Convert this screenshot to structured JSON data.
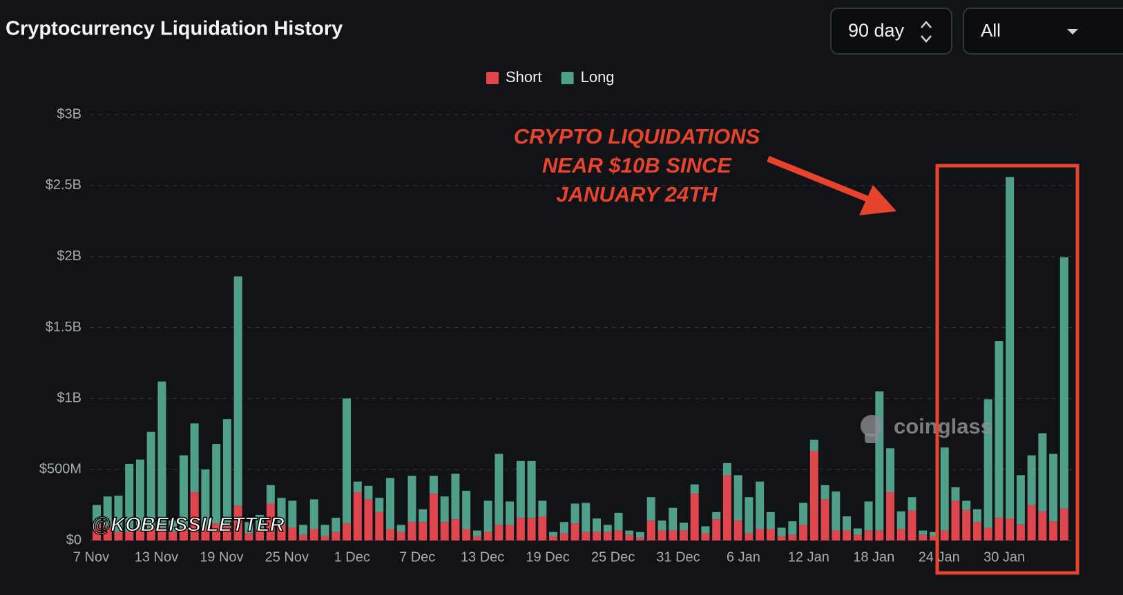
{
  "chart_data": {
    "type": "stacked_bar",
    "title": "Cryptocurrency Liquidation History",
    "controls": {
      "period": "90 day",
      "coin": "All"
    },
    "annotation": [
      "CRYPTO LIQUIDATIONS",
      "NEAR $10B SINCE",
      "JANUARY 24TH"
    ],
    "watermark": "coinglass",
    "credit": "@KOBEISSILETTER",
    "categories": [
      "7 Nov",
      null,
      null,
      null,
      null,
      null,
      "13 Nov",
      null,
      null,
      null,
      null,
      null,
      "19 Nov",
      null,
      null,
      null,
      null,
      null,
      "25 Nov",
      null,
      null,
      null,
      null,
      null,
      "1 Dec",
      null,
      null,
      null,
      null,
      null,
      "7 Dec",
      null,
      null,
      null,
      null,
      null,
      "13 Dec",
      null,
      null,
      null,
      null,
      null,
      "19 Dec",
      null,
      null,
      null,
      null,
      null,
      "25 Dec",
      null,
      null,
      null,
      null,
      null,
      "31 Dec",
      null,
      null,
      null,
      null,
      null,
      "6 Jan",
      null,
      null,
      null,
      null,
      null,
      "12 Jan",
      null,
      null,
      null,
      null,
      null,
      "18 Jan",
      null,
      null,
      null,
      null,
      null,
      "24 Jan",
      null,
      null,
      null,
      null,
      null,
      "30 Jan",
      null,
      null,
      null,
      null,
      null
    ],
    "series": [
      {
        "name": "Short",
        "color": "#e0464e",
        "values": [
          110000000,
          100000000,
          60000000,
          60000000,
          70000000,
          80000000,
          90000000,
          60000000,
          80000000,
          340000000,
          90000000,
          120000000,
          100000000,
          245000000,
          50000000,
          80000000,
          260000000,
          110000000,
          90000000,
          40000000,
          80000000,
          30000000,
          60000000,
          120000000,
          340000000,
          290000000,
          200000000,
          80000000,
          60000000,
          130000000,
          130000000,
          330000000,
          130000000,
          150000000,
          80000000,
          30000000,
          60000000,
          110000000,
          110000000,
          160000000,
          160000000,
          170000000,
          30000000,
          50000000,
          120000000,
          60000000,
          60000000,
          60000000,
          70000000,
          40000000,
          20000000,
          140000000,
          70000000,
          70000000,
          70000000,
          330000000,
          50000000,
          150000000,
          460000000,
          140000000,
          50000000,
          80000000,
          80000000,
          30000000,
          40000000,
          110000000,
          630000000,
          290000000,
          70000000,
          70000000,
          40000000,
          70000000,
          70000000,
          340000000,
          80000000,
          210000000,
          40000000,
          30000000,
          70000000,
          280000000,
          215000000,
          130000000,
          90000000,
          160000000,
          155000000,
          115000000,
          250000000,
          205000000,
          135000000,
          225000000
        ]
      },
      {
        "name": "Long",
        "color": "#4f9f8b",
        "values": [
          140000000,
          210000000,
          255000000,
          480000000,
          500000000,
          685000000,
          1030000000,
          80000000,
          520000000,
          485000000,
          410000000,
          560000000,
          755000000,
          1615000000,
          80000000,
          100000000,
          130000000,
          190000000,
          190000000,
          70000000,
          210000000,
          80000000,
          100000000,
          880000000,
          75000000,
          95000000,
          100000000,
          360000000,
          50000000,
          325000000,
          90000000,
          125000000,
          180000000,
          320000000,
          270000000,
          40000000,
          220000000,
          500000000,
          165000000,
          400000000,
          400000000,
          110000000,
          30000000,
          80000000,
          140000000,
          205000000,
          95000000,
          50000000,
          125000000,
          30000000,
          40000000,
          165000000,
          70000000,
          160000000,
          55000000,
          65000000,
          50000000,
          50000000,
          85000000,
          320000000,
          255000000,
          335000000,
          120000000,
          60000000,
          95000000,
          155000000,
          80000000,
          100000000,
          275000000,
          100000000,
          45000000,
          205000000,
          980000000,
          310000000,
          125000000,
          95000000,
          30000000,
          30000000,
          585000000,
          95000000,
          65000000,
          90000000,
          905000000,
          1245000000,
          2405000000,
          345000000,
          350000000,
          550000000,
          475000000,
          1770000000
        ]
      }
    ],
    "ylim": [
      0,
      3000000000
    ],
    "yticks": [
      {
        "value": 0,
        "label": "$0"
      },
      {
        "value": 500000000,
        "label": "$500M"
      },
      {
        "value": 1000000000,
        "label": "$1B"
      },
      {
        "value": 1500000000,
        "label": "$1.5B"
      },
      {
        "value": 2000000000,
        "label": "$2B"
      },
      {
        "value": 2500000000,
        "label": "$2.5B"
      },
      {
        "value": 3000000000,
        "label": "$3B"
      }
    ],
    "grid": true,
    "legend": "top"
  }
}
